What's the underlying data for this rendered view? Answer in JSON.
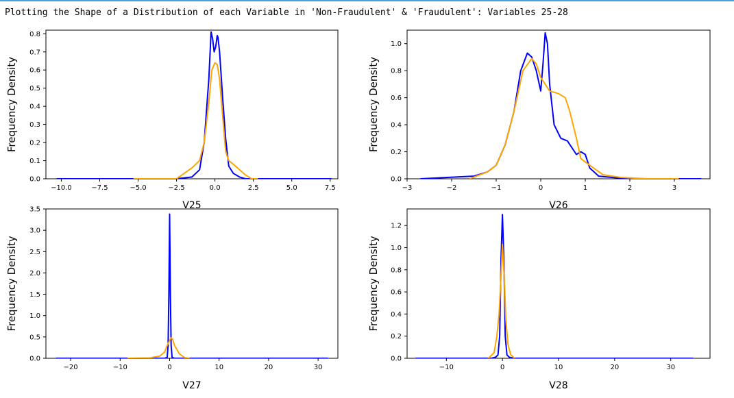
{
  "heading": "Plotting the Shape of a Distribution of each Variable in 'Non-Fraudulent' & 'Fraudulent': Variables 25-28",
  "colors": {
    "non_fraudulent": "#0000ff",
    "fraudulent": "#ffa500"
  },
  "chart_data": [
    {
      "type": "line",
      "xlabel": "V25",
      "ylabel": "Frequency Density",
      "xlim": [
        -11.0,
        8.0
      ],
      "ylim": [
        0,
        0.82
      ],
      "xticks": [
        -10.0,
        -7.5,
        -5.0,
        -2.5,
        0.0,
        2.5,
        5.0,
        7.5
      ],
      "xtick_labels": [
        "−10.0",
        "−7.5",
        "−5.0",
        "−2.5",
        "0.0",
        "2.5",
        "5.0",
        "7.5"
      ],
      "yticks": [
        0.0,
        0.1,
        0.2,
        0.3,
        0.4,
        0.5,
        0.6,
        0.7,
        0.8
      ],
      "ytick_labels": [
        "0.0",
        "0.1",
        "0.2",
        "0.3",
        "0.4",
        "0.5",
        "0.6",
        "0.7",
        "0.8"
      ],
      "series": [
        {
          "color": "#0000ff",
          "x": [
            -10.3,
            -2.5,
            -1.5,
            -1.0,
            -0.7,
            -0.4,
            -0.25,
            -0.15,
            -0.05,
            0.05,
            0.15,
            0.2,
            0.3,
            0.5,
            0.7,
            0.9,
            1.2,
            1.6,
            2.0,
            3.0,
            7.6
          ],
          "y": [
            0,
            0.0,
            0.01,
            0.05,
            0.2,
            0.55,
            0.81,
            0.77,
            0.7,
            0.73,
            0.79,
            0.78,
            0.7,
            0.45,
            0.22,
            0.07,
            0.03,
            0.01,
            0.0,
            0.0,
            0
          ]
        },
        {
          "color": "#ffa500",
          "x": [
            -5.3,
            -2.5,
            -2.0,
            -1.5,
            -1.0,
            -0.7,
            -0.4,
            -0.2,
            0.0,
            0.15,
            0.3,
            0.5,
            0.7,
            0.9,
            1.2,
            1.6,
            2.0,
            2.4,
            2.8
          ],
          "y": [
            0,
            0.0,
            0.03,
            0.06,
            0.1,
            0.2,
            0.42,
            0.6,
            0.64,
            0.63,
            0.55,
            0.35,
            0.15,
            0.1,
            0.08,
            0.05,
            0.02,
            0.0,
            0
          ]
        }
      ]
    },
    {
      "type": "line",
      "xlabel": "V26",
      "ylabel": "Frequency Density",
      "xlim": [
        -3.0,
        3.8
      ],
      "ylim": [
        0,
        1.1
      ],
      "xticks": [
        -3,
        -2,
        -1,
        0,
        1,
        2,
        3
      ],
      "xtick_labels": [
        "−3",
        "−2",
        "−1",
        "0",
        "1",
        "2",
        "3"
      ],
      "yticks": [
        0.0,
        0.2,
        0.4,
        0.6,
        0.8,
        1.0
      ],
      "ytick_labels": [
        "0.0",
        "0.2",
        "0.4",
        "0.6",
        "0.8",
        "1.0"
      ],
      "series": [
        {
          "color": "#0000ff",
          "x": [
            -2.7,
            -1.5,
            -1.2,
            -1.0,
            -0.8,
            -0.6,
            -0.45,
            -0.3,
            -0.2,
            -0.1,
            0.0,
            0.05,
            0.1,
            0.15,
            0.2,
            0.3,
            0.45,
            0.6,
            0.8,
            0.9,
            1.0,
            1.1,
            1.3,
            1.6,
            2.0,
            3.6
          ],
          "y": [
            0,
            0.02,
            0.05,
            0.1,
            0.25,
            0.5,
            0.8,
            0.93,
            0.9,
            0.8,
            0.65,
            0.85,
            1.08,
            1.0,
            0.7,
            0.4,
            0.3,
            0.28,
            0.18,
            0.2,
            0.18,
            0.08,
            0.02,
            0.01,
            0.0,
            0
          ]
        },
        {
          "color": "#ffa500",
          "x": [
            -1.6,
            -1.2,
            -1.0,
            -0.8,
            -0.6,
            -0.4,
            -0.2,
            -0.1,
            0.0,
            0.2,
            0.4,
            0.55,
            0.65,
            0.8,
            0.9,
            1.1,
            1.4,
            1.8,
            2.4,
            3.1
          ],
          "y": [
            0,
            0.05,
            0.1,
            0.25,
            0.5,
            0.8,
            0.89,
            0.85,
            0.75,
            0.65,
            0.63,
            0.6,
            0.5,
            0.3,
            0.15,
            0.1,
            0.03,
            0.01,
            0.0,
            0
          ]
        }
      ]
    },
    {
      "type": "line",
      "xlabel": "V27",
      "ylabel": "Frequency Density",
      "xlim": [
        -25.0,
        34.0
      ],
      "ylim": [
        0,
        3.5
      ],
      "xticks": [
        -20,
        -10,
        0,
        10,
        20,
        30
      ],
      "xtick_labels": [
        "−20",
        "−10",
        "0",
        "10",
        "20",
        "30"
      ],
      "yticks": [
        0.0,
        0.5,
        1.0,
        1.5,
        2.0,
        2.5,
        3.0,
        3.5
      ],
      "ytick_labels": [
        "0.0",
        "0.5",
        "1.0",
        "1.5",
        "2.0",
        "2.5",
        "3.0",
        "3.5"
      ],
      "series": [
        {
          "color": "#0000ff",
          "x": [
            -23.0,
            -1.0,
            -0.5,
            -0.3,
            -0.15,
            0.0,
            0.15,
            0.3,
            0.5,
            1.0,
            32.0
          ],
          "y": [
            0,
            0.0,
            0.02,
            0.3,
            1.5,
            3.38,
            1.5,
            0.3,
            0.02,
            0.0,
            0
          ]
        },
        {
          "color": "#ffa500",
          "x": [
            -8.5,
            -4.0,
            -2.0,
            -1.0,
            -0.5,
            0.0,
            0.3,
            0.6,
            1.0,
            2.0,
            3.0,
            4.0
          ],
          "y": [
            0,
            0.01,
            0.05,
            0.15,
            0.3,
            0.42,
            0.48,
            0.45,
            0.3,
            0.1,
            0.02,
            0
          ]
        }
      ]
    },
    {
      "type": "line",
      "xlabel": "V28",
      "ylabel": "Frequency Density",
      "xlim": [
        -17.0,
        37.0
      ],
      "ylim": [
        0,
        1.35
      ],
      "xticks": [
        -10,
        0,
        10,
        20,
        30
      ],
      "xtick_labels": [
        "−10",
        "0",
        "10",
        "20",
        "30"
      ],
      "yticks": [
        0.0,
        0.2,
        0.4,
        0.6,
        0.8,
        1.0,
        1.2
      ],
      "ytick_labels": [
        "0.0",
        "0.2",
        "0.4",
        "0.6",
        "0.8",
        "1.0",
        "1.2"
      ],
      "series": [
        {
          "color": "#0000ff",
          "x": [
            -15.5,
            -2.0,
            -1.2,
            -0.8,
            -0.5,
            -0.25,
            0.0,
            0.25,
            0.5,
            0.8,
            1.2,
            2.0,
            34.0
          ],
          "y": [
            0,
            0.0,
            0.01,
            0.03,
            0.2,
            0.9,
            1.3,
            0.9,
            0.2,
            0.03,
            0.01,
            0.0,
            0
          ]
        },
        {
          "color": "#ffa500",
          "x": [
            -2.5,
            -1.5,
            -1.0,
            -0.6,
            -0.3,
            0.0,
            0.3,
            0.6,
            1.0,
            1.5,
            2.2
          ],
          "y": [
            0,
            0.05,
            0.2,
            0.4,
            0.7,
            1.03,
            0.75,
            0.35,
            0.12,
            0.03,
            0
          ]
        }
      ]
    }
  ]
}
